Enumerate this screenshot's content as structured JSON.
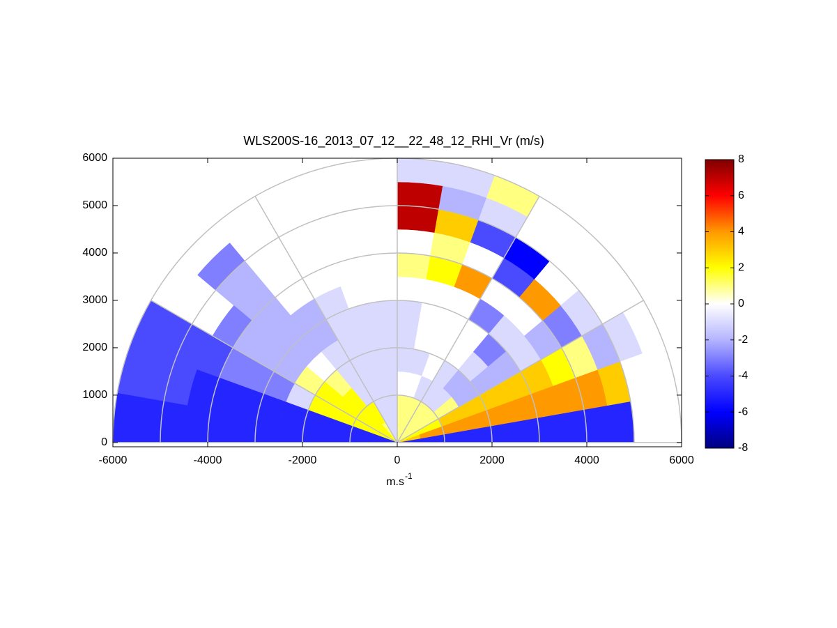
{
  "chart_data": {
    "type": "rhi",
    "title": "WLS200S-16_2013_07_12__22_48_12_RHI_Vr (m/s)",
    "xlabel": "m.s",
    "xlabel_sup": "-1",
    "xlim": [
      -6000,
      6000
    ],
    "ylim": [
      -90,
      6000
    ],
    "xticks": [
      -6000,
      -4000,
      -2000,
      0,
      2000,
      4000,
      6000
    ],
    "yticks": [
      0,
      1000,
      2000,
      3000,
      4000,
      5000,
      6000
    ],
    "polar_rings": [
      1000,
      2000,
      3000,
      4000,
      5000,
      6000
    ],
    "polar_spokes": [
      0,
      30,
      60,
      90,
      120,
      150,
      180
    ],
    "elevation_edges": [
      0,
      10,
      20,
      30,
      40,
      50,
      60,
      70,
      80,
      90,
      100,
      110,
      120,
      130,
      140,
      150,
      160,
      170,
      180
    ],
    "range_edges": [
      0,
      500,
      1000,
      1500,
      2000,
      2500,
      3000,
      3500,
      4000,
      4500,
      5000,
      5500,
      6000
    ],
    "values": [
      [
        -5,
        -5,
        -5,
        -5,
        -5,
        -5,
        -5,
        -5,
        -5,
        -5,
        null,
        null
      ],
      [
        3,
        4,
        4,
        4,
        4,
        4,
        4,
        4,
        4,
        3,
        null,
        null
      ],
      [
        2,
        2,
        3,
        3,
        3,
        3,
        3,
        2,
        1,
        -2,
        -1,
        null
      ],
      [
        1,
        1,
        1,
        -2,
        -2,
        -2,
        -1,
        -2,
        -3,
        -1,
        null,
        null
      ],
      [
        1,
        1,
        -1,
        -2,
        -1,
        -3,
        -1,
        null,
        4,
        null,
        null,
        null
      ],
      [
        1,
        1,
        -1,
        -1,
        null,
        null,
        -3,
        null,
        -4,
        -6,
        null,
        null
      ],
      [
        1,
        1,
        -1,
        0,
        null,
        null,
        null,
        4,
        null,
        -4,
        -1,
        1
      ],
      [
        1,
        1,
        0,
        -1,
        null,
        null,
        null,
        2,
        1,
        3,
        -2,
        -1
      ],
      [
        1,
        1,
        0,
        -1,
        -1,
        -1,
        null,
        1,
        null,
        7,
        7,
        -1
      ],
      [
        -1,
        -1,
        -1,
        -1,
        -1,
        -1,
        null,
        null,
        null,
        null,
        null,
        null
      ],
      [
        -1,
        -1,
        -1,
        -1,
        -1,
        -1,
        null,
        null,
        null,
        null,
        null,
        null
      ],
      [
        -1,
        -1,
        -1,
        -1,
        -1,
        -1,
        -1,
        null,
        null,
        null,
        null,
        null
      ],
      [
        1,
        2,
        -1,
        -1,
        -1,
        -2,
        -2,
        null,
        null,
        null,
        null,
        null
      ],
      [
        2,
        2,
        2,
        1,
        0,
        -2,
        -2,
        -2,
        -2,
        -2,
        -3,
        null
      ],
      [
        2,
        2,
        2,
        2,
        1,
        -2,
        -2,
        -2,
        -3,
        null,
        null,
        null
      ],
      [
        2,
        2,
        2,
        2,
        -1,
        -3,
        -3,
        -3,
        -4,
        -4,
        -4,
        -4
      ],
      [
        -5,
        -5,
        -5,
        -5,
        -5,
        -5,
        -5,
        -5,
        -5,
        -4,
        -4,
        -4
      ],
      [
        -5,
        -5,
        -5,
        -5,
        -5,
        -5,
        -5,
        -5,
        -5,
        -5,
        -5,
        -5
      ]
    ],
    "clim": [
      -8,
      8
    ],
    "cticks": [
      -8,
      -6,
      -4,
      -2,
      0,
      2,
      4,
      6,
      8
    ],
    "colormap": [
      "#00007f",
      "#0000ff",
      "#4a4aff",
      "#b4b4ff",
      "#ffffff",
      "#ffff00",
      "#ff9900",
      "#ff0000",
      "#7f0000"
    ],
    "grid_color": "#c0c0c0"
  }
}
